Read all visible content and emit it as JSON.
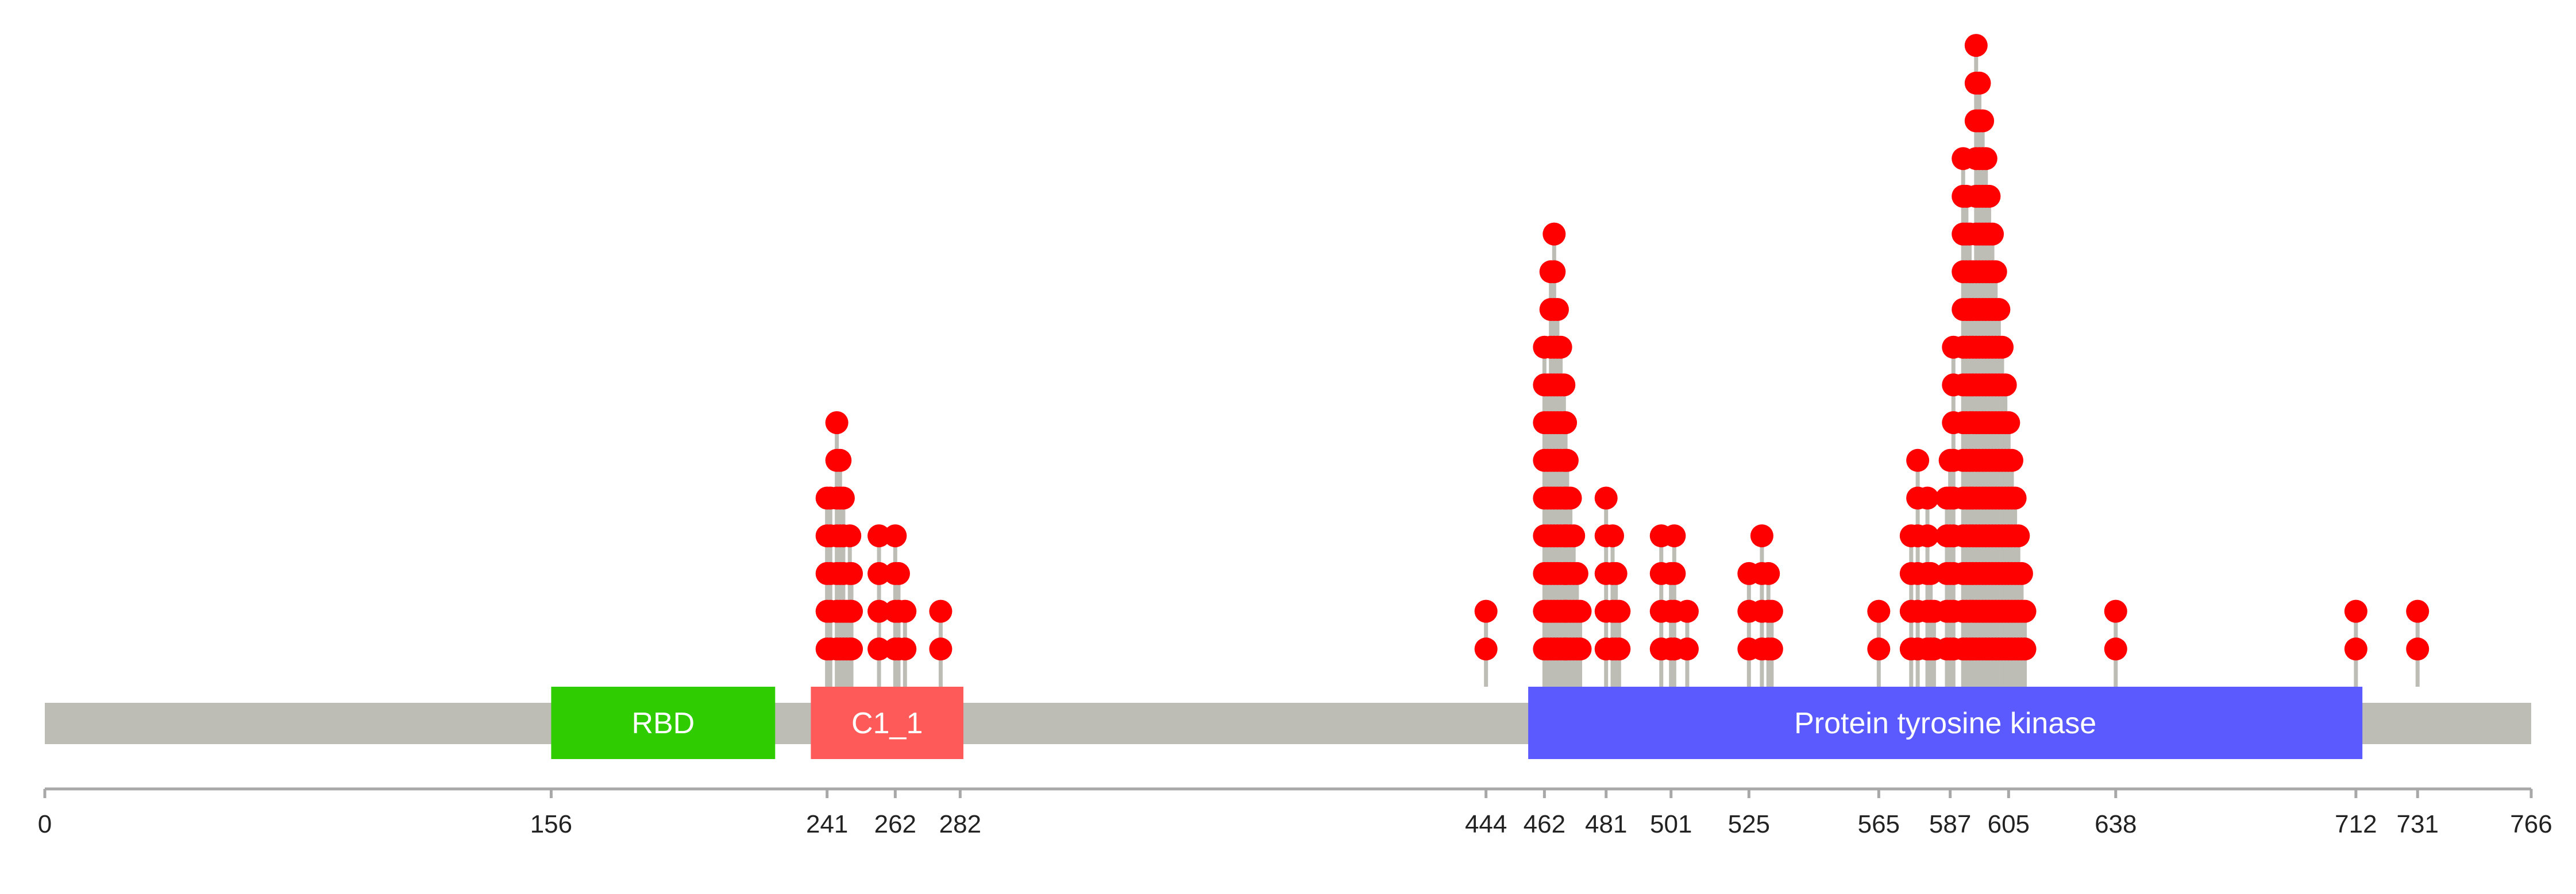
{
  "chart_data": {
    "type": "lollipop",
    "protein_length": 766,
    "xlim": [
      0,
      766
    ],
    "ticks": [
      0,
      156,
      241,
      262,
      282,
      444,
      462,
      481,
      501,
      525,
      565,
      587,
      605,
      638,
      712,
      731,
      766
    ],
    "domains": [
      {
        "name": "RBD",
        "start": 156,
        "end": 225,
        "color": "#2ecc00"
      },
      {
        "name": "C1_1",
        "start": 236,
        "end": 283,
        "color": "#ff5a5a"
      },
      {
        "name": "Protein tyrosine kinase",
        "start": 457,
        "end": 714,
        "color": "#5a5aff"
      }
    ],
    "colors": {
      "backbone": "#bdbdb5",
      "stem": "#bdbdb5",
      "head": "#ff0000",
      "axis": "#a8a8a8",
      "tick_text": "#222222"
    },
    "mutations": [
      {
        "pos": 241,
        "count": 5
      },
      {
        "pos": 242,
        "count": 5
      },
      {
        "pos": 244,
        "count": 7
      },
      {
        "pos": 245,
        "count": 6
      },
      {
        "pos": 246,
        "count": 5
      },
      {
        "pos": 247,
        "count": 2
      },
      {
        "pos": 248,
        "count": 4
      },
      {
        "pos": 248.5,
        "count": 3
      },
      {
        "pos": 257,
        "count": 4
      },
      {
        "pos": 262,
        "count": 4
      },
      {
        "pos": 263,
        "count": 3
      },
      {
        "pos": 265,
        "count": 2
      },
      {
        "pos": 276,
        "count": 2
      },
      {
        "pos": 444,
        "count": 2
      },
      {
        "pos": 462,
        "count": 9
      },
      {
        "pos": 463,
        "count": 8
      },
      {
        "pos": 464,
        "count": 11
      },
      {
        "pos": 465,
        "count": 12
      },
      {
        "pos": 466,
        "count": 10
      },
      {
        "pos": 467,
        "count": 9
      },
      {
        "pos": 468,
        "count": 8
      },
      {
        "pos": 468.5,
        "count": 7
      },
      {
        "pos": 469,
        "count": 6
      },
      {
        "pos": 470,
        "count": 5
      },
      {
        "pos": 471,
        "count": 4
      },
      {
        "pos": 472,
        "count": 3
      },
      {
        "pos": 473,
        "count": 2
      },
      {
        "pos": 481,
        "count": 5
      },
      {
        "pos": 483,
        "count": 4
      },
      {
        "pos": 484,
        "count": 3
      },
      {
        "pos": 485,
        "count": 2
      },
      {
        "pos": 498,
        "count": 4
      },
      {
        "pos": 501,
        "count": 3
      },
      {
        "pos": 502,
        "count": 4
      },
      {
        "pos": 506,
        "count": 2
      },
      {
        "pos": 525,
        "count": 3
      },
      {
        "pos": 529,
        "count": 4
      },
      {
        "pos": 531,
        "count": 3
      },
      {
        "pos": 532,
        "count": 2
      },
      {
        "pos": 565,
        "count": 2
      },
      {
        "pos": 575,
        "count": 4
      },
      {
        "pos": 577,
        "count": 6
      },
      {
        "pos": 580,
        "count": 5
      },
      {
        "pos": 581,
        "count": 3
      },
      {
        "pos": 582,
        "count": 2
      },
      {
        "pos": 586,
        "count": 5
      },
      {
        "pos": 587,
        "count": 6
      },
      {
        "pos": 588,
        "count": 9
      },
      {
        "pos": 591,
        "count": 14
      },
      {
        "pos": 592,
        "count": 13
      },
      {
        "pos": 593,
        "count": 12
      },
      {
        "pos": 594,
        "count": 11
      },
      {
        "pos": 595,
        "count": 17
      },
      {
        "pos": 596,
        "count": 16
      },
      {
        "pos": 597,
        "count": 15
      },
      {
        "pos": 598,
        "count": 14
      },
      {
        "pos": 599,
        "count": 13
      },
      {
        "pos": 600,
        "count": 12
      },
      {
        "pos": 601,
        "count": 11
      },
      {
        "pos": 602,
        "count": 10
      },
      {
        "pos": 603,
        "count": 9
      },
      {
        "pos": 604,
        "count": 8
      },
      {
        "pos": 605,
        "count": 7
      },
      {
        "pos": 606,
        "count": 6
      },
      {
        "pos": 607,
        "count": 5
      },
      {
        "pos": 608,
        "count": 4
      },
      {
        "pos": 609,
        "count": 3
      },
      {
        "pos": 610,
        "count": 2
      },
      {
        "pos": 638,
        "count": 2
      },
      {
        "pos": 712,
        "count": 2
      },
      {
        "pos": 731,
        "count": 2
      }
    ]
  }
}
